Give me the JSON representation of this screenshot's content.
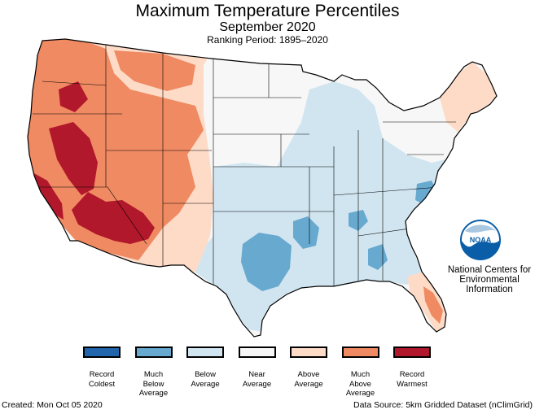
{
  "header": {
    "title": "Maximum Temperature Percentiles",
    "subtitle": "September 2020",
    "period": "Ranking Period: 1895–2020"
  },
  "noaa": {
    "logo_text": "NOAA",
    "line1": "National Centers for",
    "line2": "Environmental",
    "line3": "Information"
  },
  "legend": [
    {
      "label": "Record\nColdest",
      "color": "#2166ac"
    },
    {
      "label": "Much\nBelow\nAverage",
      "color": "#67a9cf"
    },
    {
      "label": "Below\nAverage",
      "color": "#d1e5f0"
    },
    {
      "label": "Near\nAverage",
      "color": "#f7f7f7"
    },
    {
      "label": "Above\nAverage",
      "color": "#fddbc7"
    },
    {
      "label": "Much\nAbove\nAverage",
      "color": "#ef8a62"
    },
    {
      "label": "Record\nWarmest",
      "color": "#b2182b"
    }
  ],
  "footer": {
    "created": "Created: Mon Oct 05 2020",
    "source": "Data Source: 5km Gridded Dataset (nClimGrid)"
  },
  "colors": {
    "record_coldest": "#2166ac",
    "much_below": "#67a9cf",
    "below": "#d1e5f0",
    "near": "#f7f7f7",
    "above": "#fddbc7",
    "much_above": "#ef8a62",
    "record_warmest": "#b2182b",
    "noaa_blue": "#0a5ea8"
  }
}
